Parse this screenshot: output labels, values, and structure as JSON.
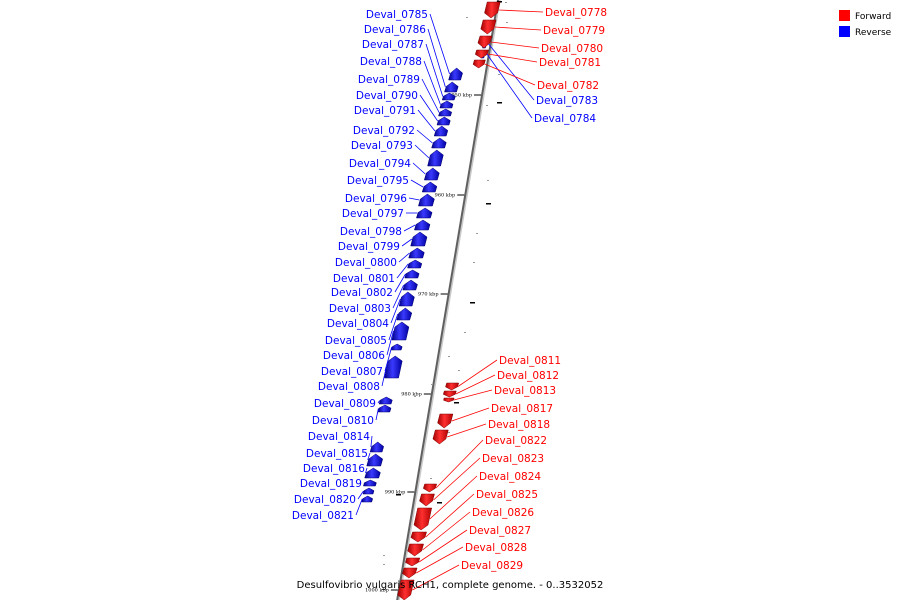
{
  "caption": "Desulfovibrio vulgaris RCH1, complete genome. - 0..3532052",
  "legend": {
    "forward_label": "Forward",
    "reverse_label": "Reverse",
    "forward_color": "#ff0000",
    "reverse_color": "#0000ff"
  },
  "ticks": [
    "950 kbp",
    "960 kbp",
    "970 kbp",
    "980 kbp",
    "990 kbp",
    "1000 kbp"
  ],
  "forward_genes": [
    "Deval_0778",
    "Deval_0779",
    "Deval_0780",
    "Deval_0781",
    "Deval_0782",
    "Deval_0811",
    "Deval_0812",
    "Deval_0813",
    "Deval_0817",
    "Deval_0818",
    "Deval_0822",
    "Deval_0823",
    "Deval_0824",
    "Deval_0825",
    "Deval_0826",
    "Deval_0827",
    "Deval_0828",
    "Deval_0829"
  ],
  "reverse_genes": [
    "Deval_0783",
    "Deval_0784",
    "Deval_0785",
    "Deval_0786",
    "Deval_0787",
    "Deval_0788",
    "Deval_0789",
    "Deval_0790",
    "Deval_0791",
    "Deval_0792",
    "Deval_0793",
    "Deval_0794",
    "Deval_0795",
    "Deval_0796",
    "Deval_0797",
    "Deval_0798",
    "Deval_0799",
    "Deval_0800",
    "Deval_0801",
    "Deval_0802",
    "Deval_0803",
    "Deval_0804",
    "Deval_0805",
    "Deval_0806",
    "Deval_0807",
    "Deval_0808",
    "Deval_0809",
    "Deval_0810",
    "Deval_0814",
    "Deval_0815",
    "Deval_0816",
    "Deval_0819",
    "Deval_0820",
    "Deval_0821"
  ]
}
